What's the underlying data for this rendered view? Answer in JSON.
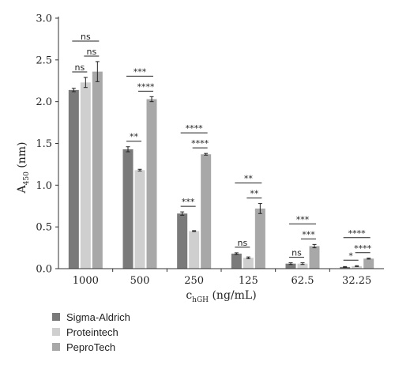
{
  "chart_data": {
    "type": "bar",
    "categories": [
      "1000",
      "500",
      "250",
      "125",
      "62.5",
      "32.25"
    ],
    "series": [
      {
        "name": "Sigma-Aldrich",
        "color": "#7a7a7a",
        "values": [
          2.14,
          1.43,
          0.66,
          0.18,
          0.06,
          0.02
        ],
        "errors": [
          0.02,
          0.03,
          0.02,
          0.01,
          0.01,
          0.005
        ]
      },
      {
        "name": "Proteintech",
        "color": "#cfcfcf",
        "values": [
          2.23,
          1.18,
          0.45,
          0.13,
          0.06,
          0.03
        ],
        "errors": [
          0.06,
          0.01,
          0.005,
          0.01,
          0.01,
          0.005
        ]
      },
      {
        "name": "PeproTech",
        "color": "#a8a8a8",
        "values": [
          2.36,
          2.03,
          1.37,
          0.72,
          0.27,
          0.12
        ],
        "errors": [
          0.12,
          0.03,
          0.01,
          0.06,
          0.02,
          0.005
        ]
      }
    ],
    "xlabel_main": "c",
    "xlabel_sub": "hGH",
    "xlabel_unit": " (ng/mL)",
    "ylabel_main": "A",
    "ylabel_sub": "450",
    "ylabel_unit": " (nm)",
    "ylim": [
      0,
      3.0
    ],
    "yticks": [
      "0.0",
      "0.5",
      "1.0",
      "1.5",
      "2.0",
      "2.5",
      "3.0"
    ],
    "grid": false,
    "legend_position": "bottom-left",
    "significance": [
      {
        "group": 0,
        "from": 0,
        "to": 1,
        "label": "ns"
      },
      {
        "group": 0,
        "from": 1,
        "to": 2,
        "label": "ns"
      },
      {
        "group": 0,
        "from": 0,
        "to": 2,
        "label": "ns"
      },
      {
        "group": 1,
        "from": 0,
        "to": 1,
        "label": "**"
      },
      {
        "group": 1,
        "from": 1,
        "to": 2,
        "label": "****"
      },
      {
        "group": 1,
        "from": 0,
        "to": 2,
        "label": "***"
      },
      {
        "group": 2,
        "from": 0,
        "to": 1,
        "label": "***"
      },
      {
        "group": 2,
        "from": 1,
        "to": 2,
        "label": "****"
      },
      {
        "group": 2,
        "from": 0,
        "to": 2,
        "label": "****"
      },
      {
        "group": 3,
        "from": 0,
        "to": 1,
        "label": "ns"
      },
      {
        "group": 3,
        "from": 1,
        "to": 2,
        "label": "**"
      },
      {
        "group": 3,
        "from": 0,
        "to": 2,
        "label": "**"
      },
      {
        "group": 4,
        "from": 0,
        "to": 1,
        "label": "ns"
      },
      {
        "group": 4,
        "from": 1,
        "to": 2,
        "label": "***"
      },
      {
        "group": 4,
        "from": 0,
        "to": 2,
        "label": "***"
      },
      {
        "group": 5,
        "from": 0,
        "to": 1,
        "label": "*"
      },
      {
        "group": 5,
        "from": 1,
        "to": 2,
        "label": "****"
      },
      {
        "group": 5,
        "from": 0,
        "to": 2,
        "label": "****"
      }
    ]
  }
}
